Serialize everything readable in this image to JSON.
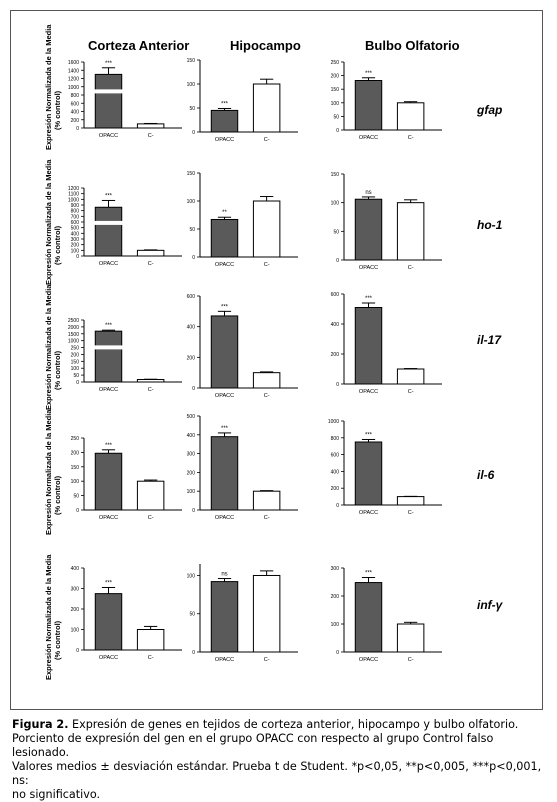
{
  "figure": {
    "columns": [
      "Corteza Anterior",
      "Hipocampo",
      "Bulbo Olfatorio"
    ],
    "ylabel_line1": "Expresión Normalizada de la Media",
    "ylabel_line2": "(% control)",
    "genes": [
      "gfap",
      "ho-1",
      "il-17",
      "il-6",
      "inf-γ"
    ]
  },
  "caption": {
    "label": "Figura 2.",
    "line1": "Expresión de genes en tejidos de corteza anterior, hipocampo y bulbo olfatorio.",
    "line2": "Porciento de expresión del gen en el grupo OPACC con respecto al grupo Control falso lesionado.",
    "line3": "Valores medios ± desviación estándar. Prueba t de Student. *p<0,05, **p<0,005, ***p<0,001, ns:",
    "line4": "no significativo."
  },
  "colors": {
    "opacc_bar": "#5a5a5a",
    "control_bar": "#ffffff",
    "axis": "#000000"
  },
  "chart_data": [
    {
      "type": "bar",
      "gene": "gfap",
      "region": "Corteza Anterior",
      "categories": [
        "OPACC",
        "C-"
      ],
      "values": [
        1300,
        100
      ],
      "errors": [
        160,
        10
      ],
      "sig": "***",
      "yticks": [
        "0",
        "200",
        "400",
        "600",
        "800",
        "1000",
        "1200",
        "1400",
        "1600"
      ],
      "ylim": [
        0,
        1600
      ],
      "broken_axis": true
    },
    {
      "type": "bar",
      "gene": "gfap",
      "region": "Hipocampo",
      "categories": [
        "OPACC",
        "C-"
      ],
      "values": [
        45,
        100
      ],
      "errors": [
        4,
        10
      ],
      "sig": "***",
      "yticks": [
        "0",
        "50",
        "100",
        "150"
      ],
      "ylim": [
        0,
        150
      ]
    },
    {
      "type": "bar",
      "gene": "gfap",
      "region": "Bulbo Olfatorio",
      "categories": [
        "OPACC",
        "C-"
      ],
      "values": [
        182,
        100
      ],
      "errors": [
        10,
        4
      ],
      "sig": "***",
      "yticks": [
        "0",
        "50",
        "100",
        "150",
        "200",
        "250"
      ],
      "ylim": [
        0,
        250
      ]
    },
    {
      "type": "bar",
      "gene": "ho-1",
      "region": "Corteza Anterior",
      "categories": [
        "OPACC",
        "C-"
      ],
      "values": [
        860,
        100
      ],
      "errors": [
        120,
        8
      ],
      "sig": "***",
      "yticks": [
        "0",
        "100",
        "200",
        "300",
        "400",
        "500",
        "600",
        "700",
        "800",
        "900",
        "1000",
        "1100",
        "1200"
      ],
      "ylim": [
        0,
        1200
      ],
      "broken_axis": true
    },
    {
      "type": "bar",
      "gene": "ho-1",
      "region": "Hipocampo",
      "categories": [
        "OPACC",
        "C-"
      ],
      "values": [
        67,
        100
      ],
      "errors": [
        4,
        8
      ],
      "sig": "**",
      "yticks": [
        "0",
        "50",
        "100",
        "150"
      ],
      "ylim": [
        0,
        150
      ]
    },
    {
      "type": "bar",
      "gene": "ho-1",
      "region": "Bulbo Olfatorio",
      "categories": [
        "OPACC",
        "C-"
      ],
      "values": [
        106,
        100
      ],
      "errors": [
        4,
        5
      ],
      "sig": "ns",
      "yticks": [
        "0",
        "50",
        "100",
        "150"
      ],
      "ylim": [
        0,
        150
      ]
    },
    {
      "type": "bar",
      "gene": "il-17",
      "region": "Corteza Anterior",
      "categories": [
        "OPACC",
        "C-"
      ],
      "values": [
        2050,
        100
      ],
      "errors": [
        40,
        12
      ],
      "sig": "***",
      "yticks": [
        "0",
        "50",
        "100",
        "150",
        "200",
        "250",
        "1000",
        "1500",
        "2000",
        "2500"
      ],
      "ylim": [
        0,
        2500
      ],
      "broken_axis": true
    },
    {
      "type": "bar",
      "gene": "il-17",
      "region": "Hipocampo",
      "categories": [
        "OPACC",
        "C-"
      ],
      "values": [
        470,
        100
      ],
      "errors": [
        30,
        5
      ],
      "sig": "***",
      "yticks": [
        "0",
        "200",
        "400",
        "600"
      ],
      "ylim": [
        0,
        600
      ]
    },
    {
      "type": "bar",
      "gene": "il-17",
      "region": "Bulbo Olfatorio",
      "categories": [
        "OPACC",
        "C-"
      ],
      "values": [
        510,
        100
      ],
      "errors": [
        30,
        3
      ],
      "sig": "***",
      "yticks": [
        "0",
        "200",
        "400",
        "600"
      ],
      "ylim": [
        0,
        600
      ]
    },
    {
      "type": "bar",
      "gene": "il-6",
      "region": "Corteza Anterior",
      "categories": [
        "OPACC",
        "C-"
      ],
      "values": [
        197,
        100
      ],
      "errors": [
        12,
        4
      ],
      "sig": "***",
      "yticks": [
        "0",
        "50",
        "100",
        "150",
        "200",
        "250"
      ],
      "ylim": [
        0,
        250
      ]
    },
    {
      "type": "bar",
      "gene": "il-6",
      "region": "Hipocampo",
      "categories": [
        "OPACC",
        "C-"
      ],
      "values": [
        390,
        100
      ],
      "errors": [
        20,
        3
      ],
      "sig": "***",
      "yticks": [
        "0",
        "100",
        "200",
        "300",
        "400",
        "500"
      ],
      "ylim": [
        0,
        500
      ]
    },
    {
      "type": "bar",
      "gene": "il-6",
      "region": "Bulbo Olfatorio",
      "categories": [
        "OPACC",
        "C-"
      ],
      "values": [
        750,
        100
      ],
      "errors": [
        30,
        3
      ],
      "sig": "***",
      "yticks": [
        "0",
        "200",
        "400",
        "600",
        "800",
        "1000"
      ],
      "ylim": [
        0,
        1000
      ]
    },
    {
      "type": "bar",
      "gene": "inf-γ",
      "region": "Corteza Anterior",
      "categories": [
        "OPACC",
        "C-"
      ],
      "values": [
        275,
        100
      ],
      "errors": [
        30,
        15
      ],
      "sig": "***",
      "yticks": [
        "0",
        "100",
        "200",
        "300",
        "400"
      ],
      "ylim": [
        0,
        400
      ]
    },
    {
      "type": "bar",
      "gene": "inf-γ",
      "region": "Hipocampo",
      "categories": [
        "OPACC",
        "C-"
      ],
      "values": [
        92,
        100
      ],
      "errors": [
        4,
        6
      ],
      "sig": "ns",
      "yticks": [
        "0",
        "50",
        "100"
      ],
      "ylim": [
        0,
        115
      ]
    },
    {
      "type": "bar",
      "gene": "inf-γ",
      "region": "Bulbo Olfatorio",
      "categories": [
        "OPACC",
        "C-"
      ],
      "values": [
        248,
        100
      ],
      "errors": [
        18,
        6
      ],
      "sig": "***",
      "yticks": [
        "0",
        "100",
        "200",
        "300"
      ],
      "ylim": [
        0,
        300
      ]
    }
  ]
}
